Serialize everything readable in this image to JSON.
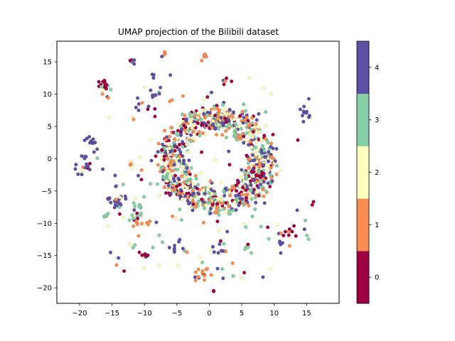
{
  "chart_data": {
    "type": "scatter",
    "title": "UMAP projection of the Bilibili dataset",
    "xlabel": "",
    "ylabel": "",
    "xlim": [
      -23.5,
      20
    ],
    "ylim": [
      -22.4,
      18.2
    ],
    "xticks": [
      -20,
      -15,
      -10,
      -5,
      0,
      5,
      10,
      15
    ],
    "yticks": [
      -20,
      -15,
      -10,
      -5,
      0,
      5,
      10,
      15
    ],
    "grid": false,
    "colormap": "Spectral",
    "classes": [
      {
        "label": "0",
        "color": "#9e0142"
      },
      {
        "label": "1",
        "color": "#f98e52"
      },
      {
        "label": "2",
        "color": "#ffffbe"
      },
      {
        "label": "3",
        "color": "#86cfa5"
      },
      {
        "label": "4",
        "color": "#5e4fa2"
      }
    ],
    "colorbar": {
      "ticks": [
        "0",
        "1",
        "2",
        "3",
        "4"
      ]
    },
    "clusters": [
      {
        "cx": -16.3,
        "cy": 11.4,
        "r": 0.4,
        "n": 14,
        "cls": 0
      },
      {
        "cx": -11.9,
        "cy": 15.3,
        "r": 0.3,
        "n": 6,
        "cls": 4
      },
      {
        "cx": -7.0,
        "cy": 16.4,
        "r": 0.3,
        "n": 4,
        "cls": 1
      },
      {
        "cx": -1.0,
        "cy": 15.9,
        "r": 0.3,
        "n": 5,
        "cls": 1
      },
      {
        "cx": -8.5,
        "cy": 12.6,
        "r": 0.3,
        "n": 3,
        "cls": 4
      },
      {
        "cx": -8.3,
        "cy": 10.3,
        "r": 0.5,
        "n": 8,
        "cls": 4
      },
      {
        "cx": -10.6,
        "cy": 8.2,
        "r": 0.6,
        "n": 6,
        "cls": 4
      },
      {
        "cx": 14.9,
        "cy": 6.9,
        "r": 0.5,
        "n": 12,
        "cls": 4
      },
      {
        "cx": -18.3,
        "cy": 2.8,
        "r": 0.5,
        "n": 8,
        "cls": 4
      },
      {
        "cx": -19.1,
        "cy": -0.9,
        "r": 1.0,
        "n": 22,
        "cls": 4
      },
      {
        "cx": -11.8,
        "cy": -1.2,
        "r": 0.6,
        "n": 7,
        "cls": 2
      },
      {
        "cx": -14.6,
        "cy": -6.6,
        "r": 1.0,
        "n": 20,
        "cls": 4
      },
      {
        "cx": -11.2,
        "cy": -7.2,
        "r": 1.0,
        "n": 14,
        "cls": 3
      },
      {
        "cx": -10.3,
        "cy": -10.2,
        "r": 0.6,
        "n": 10,
        "cls": 1
      },
      {
        "cx": -9.8,
        "cy": -15.2,
        "r": 0.5,
        "n": 8,
        "cls": 0
      },
      {
        "cx": -5.1,
        "cy": -13.8,
        "r": 0.7,
        "n": 8,
        "cls": 4
      },
      {
        "cx": -1.3,
        "cy": -17.8,
        "r": 0.6,
        "n": 16,
        "cls": 1
      },
      {
        "cx": 1.6,
        "cy": -13.6,
        "r": 0.8,
        "n": 10,
        "cls": 4
      },
      {
        "cx": 12.2,
        "cy": -11.6,
        "r": 0.5,
        "n": 9,
        "cls": 0
      },
      {
        "cx": 10.9,
        "cy": -13.1,
        "r": 0.3,
        "n": 4,
        "cls": 4
      },
      {
        "cx": 15.9,
        "cy": -6.7,
        "r": 0.2,
        "n": 2,
        "cls": 0
      },
      {
        "cx": -16.1,
        "cy": -9.2,
        "r": 0.4,
        "n": 4,
        "cls": 3
      },
      {
        "cx": 0.7,
        "cy": -20.5,
        "r": 0.2,
        "n": 2,
        "cls": 0
      },
      {
        "cx": 5.9,
        "cy": -14.0,
        "r": 0.4,
        "n": 5,
        "cls": 3
      },
      {
        "cx": 2.4,
        "cy": 12.0,
        "r": 0.5,
        "n": 4,
        "cls": 0
      }
    ],
    "ring": {
      "cx": 1.2,
      "cy": -0.3,
      "r_inner": 5.0,
      "r_outer": 9.0,
      "n": 900
    },
    "scatter_background": {
      "xmin": -17.0,
      "xmax": 15.5,
      "ymin": -19.0,
      "ymax": 13.0,
      "n": 140
    }
  }
}
